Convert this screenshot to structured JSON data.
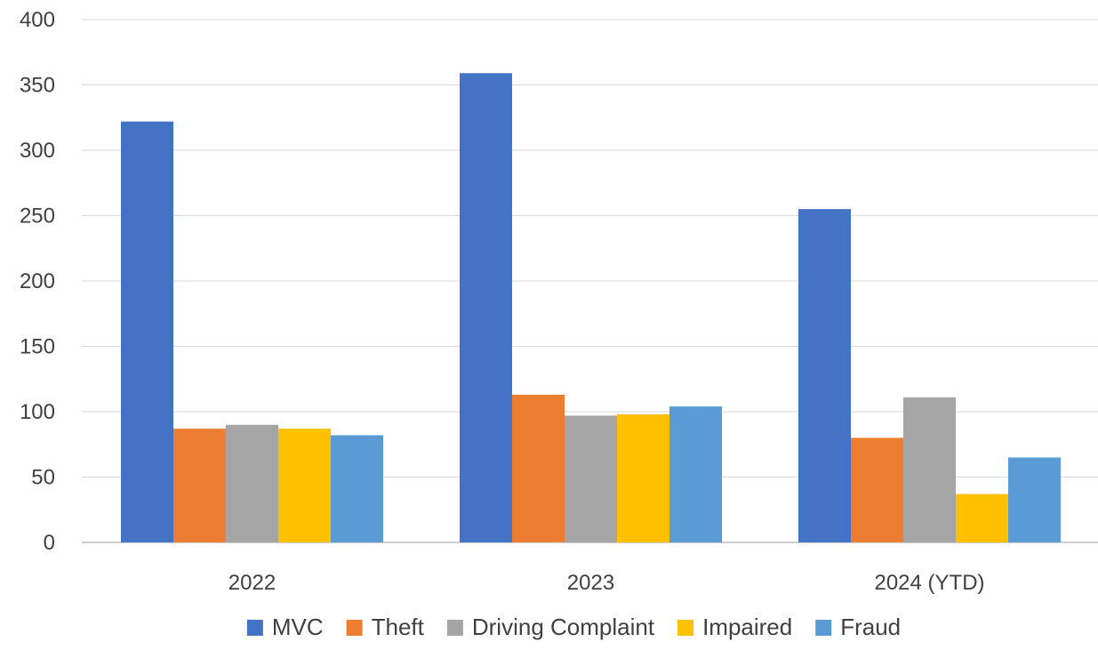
{
  "chart_data": {
    "type": "bar",
    "title": "",
    "xlabel": "",
    "ylabel": "",
    "categories": [
      "2022",
      "2023",
      "2024 (YTD)"
    ],
    "ylim": [
      0,
      400
    ],
    "yticks": [
      0,
      50,
      100,
      150,
      200,
      250,
      300,
      350,
      400
    ],
    "grid": true,
    "legend_position": "bottom",
    "series": [
      {
        "name": "MVC",
        "color": "#4472C4",
        "values": [
          322,
          359,
          255
        ]
      },
      {
        "name": "Theft",
        "color": "#ED7D31",
        "values": [
          87,
          113,
          80
        ]
      },
      {
        "name": "Driving Complaint",
        "color": "#A5A5A5",
        "values": [
          90,
          97,
          111
        ]
      },
      {
        "name": "Impaired",
        "color": "#FFC000",
        "values": [
          87,
          98,
          37
        ]
      },
      {
        "name": "Fraud",
        "color": "#5B9BD5",
        "values": [
          82,
          104,
          65
        ]
      }
    ]
  }
}
